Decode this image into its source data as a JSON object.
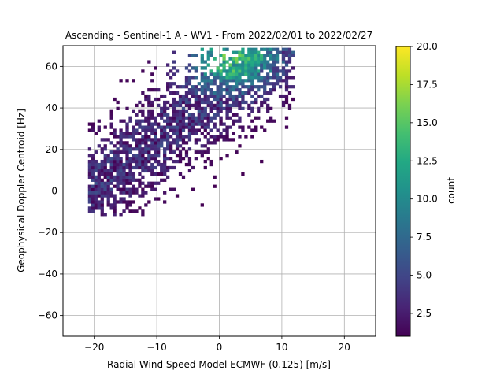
{
  "chart_data": {
    "type": "heatmap",
    "title": "Ascending - Sentinel-1 A - WV1 - From 2022/02/01 to 2022/02/27",
    "xlabel": "Radial Wind Speed Model ECMWF (0.125) [m/s]",
    "ylabel": "Geophysical Doppler Centroid [Hz]",
    "xlim": [
      -25,
      25
    ],
    "ylim": [
      -70,
      70
    ],
    "x_ticks": [
      -20,
      -10,
      0,
      10,
      20
    ],
    "y_ticks": [
      -60,
      -40,
      -20,
      0,
      20,
      40,
      60
    ],
    "grid": true,
    "bin_width_x": 0.5,
    "bin_width_y": 1.5,
    "colorbar": {
      "label": "count",
      "range": [
        1,
        20
      ],
      "ticks": [
        2.5,
        5.0,
        7.5,
        10.0,
        12.5,
        15.0,
        17.5,
        20.0
      ],
      "colormap": "viridis"
    },
    "density_model": {
      "ridge_slope_hz_per_ms": 2.2,
      "ridge_intercept_hz": 47,
      "x_range": [
        -21,
        12
      ],
      "y_range": [
        -12,
        70
      ],
      "peak_count": 17,
      "peak_location": [
        1.5,
        65
      ]
    }
  }
}
